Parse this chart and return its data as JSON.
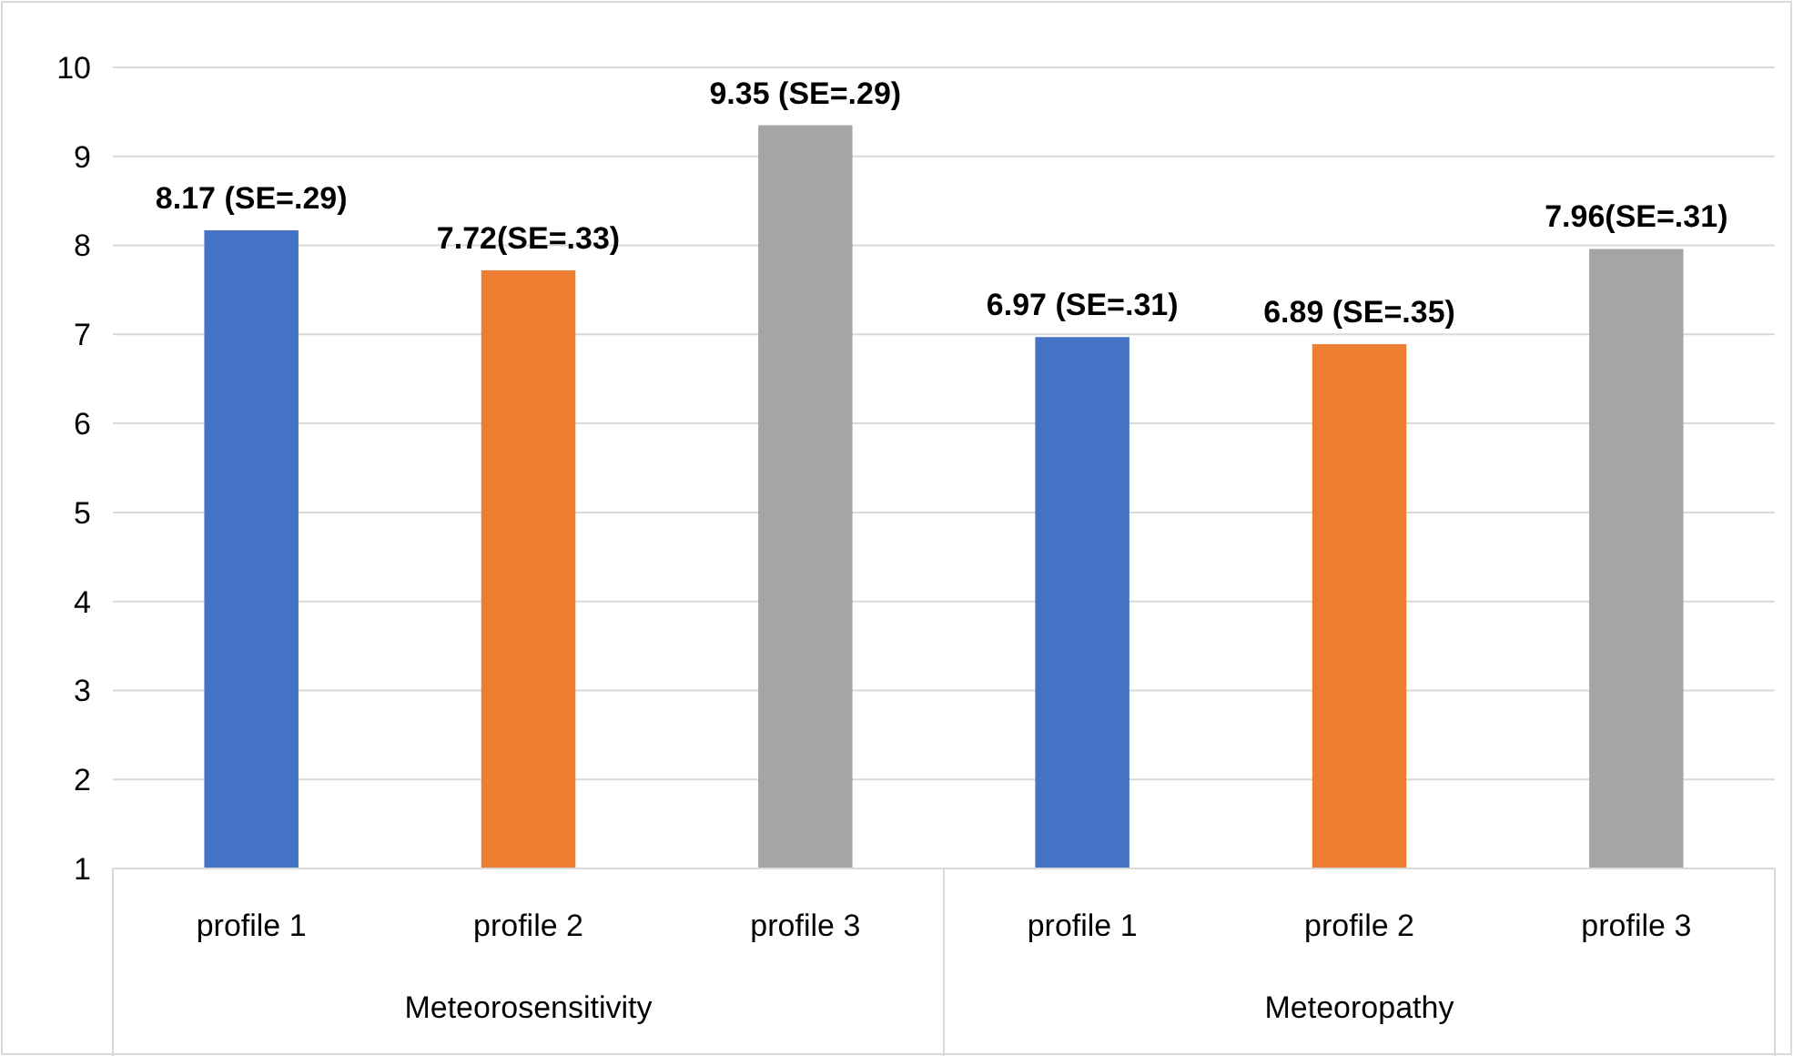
{
  "chart_data": {
    "type": "bar",
    "categories": [
      "profile 1",
      "profile 2",
      "profile 3",
      "profile 1",
      "profile 2",
      "profile 3"
    ],
    "values": [
      8.17,
      7.72,
      9.35,
      6.97,
      6.89,
      7.96
    ],
    "colors": [
      "#4472c4",
      "#ed7d31",
      "#a5a5a5",
      "#4472c4",
      "#ed7d31",
      "#a5a5a5"
    ],
    "value_labels": [
      "8.17 (SE=.29)",
      "7.72(SE=.33)",
      "9.35 (SE=.29)",
      "6.97 (SE=.31)",
      "6.89 (SE=.35)",
      "7.96(SE=.31)"
    ],
    "ylim": [
      1,
      10
    ],
    "yticks": [
      1,
      2,
      3,
      4,
      5,
      6,
      7,
      8,
      9,
      10
    ],
    "grid": "y",
    "annotations": [
      "Meteorosensitivity",
      "Meteoropathy"
    ]
  }
}
